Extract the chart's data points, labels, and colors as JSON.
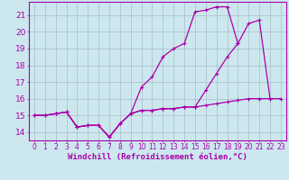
{
  "xlabel": "Windchill (Refroidissement éolien,°C)",
  "bg_color": "#cce8ee",
  "grid_color": "#aabbc8",
  "line_color": "#aa00aa",
  "x": [
    0,
    1,
    2,
    3,
    4,
    5,
    6,
    7,
    8,
    9,
    10,
    11,
    12,
    13,
    14,
    15,
    16,
    17,
    18,
    19,
    20,
    21,
    22,
    23
  ],
  "line1": [
    15.0,
    15.0,
    15.1,
    15.2,
    14.3,
    14.4,
    14.4,
    13.7,
    14.5,
    15.1,
    15.3,
    15.3,
    15.4,
    15.4,
    15.5,
    15.5,
    15.6,
    15.7,
    15.8,
    15.9,
    16.0,
    16.0,
    16.0,
    16.0
  ],
  "line2": [
    15.0,
    15.0,
    15.1,
    15.2,
    14.3,
    14.4,
    14.4,
    13.7,
    14.5,
    15.1,
    15.3,
    15.3,
    15.4,
    15.4,
    15.5,
    15.5,
    16.5,
    17.5,
    18.5,
    19.3,
    20.5,
    20.7,
    16.0,
    null
  ],
  "line3": [
    15.0,
    15.0,
    15.1,
    15.2,
    14.3,
    14.4,
    14.4,
    13.7,
    14.5,
    15.1,
    16.7,
    17.3,
    18.5,
    19.0,
    19.3,
    21.2,
    21.3,
    21.5,
    21.5,
    19.3,
    null,
    null,
    null,
    null
  ],
  "ylim": [
    13.5,
    21.8
  ],
  "xlim": [
    -0.5,
    23.5
  ],
  "ytick_vals": [
    14,
    15,
    16,
    17,
    18,
    19,
    20,
    21
  ],
  "fontsize_xlabel": 6.5,
  "fontsize_ytick": 6.5,
  "fontsize_xtick": 5.5
}
